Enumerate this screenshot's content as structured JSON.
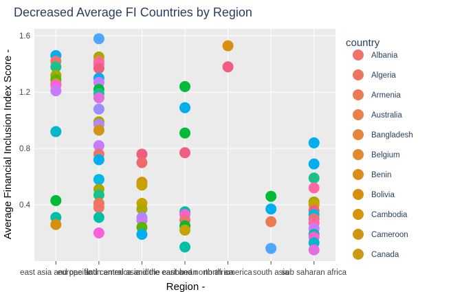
{
  "chart_data": {
    "type": "scatter",
    "title": "Decreased Average FI Countries by Region",
    "xlabel": "Region -",
    "ylabel": "Average Financial Inclusion Index Score -",
    "categories": [
      "east asia and pacific",
      "europe and central asia",
      "latin america and the caribbean",
      "middle east and north africa",
      "north america",
      "south asia",
      "sub saharan africa"
    ],
    "yticks": [
      0.4,
      0.8,
      1.2,
      1.6
    ],
    "yticklabels": [
      "0.4",
      "0.8",
      "1.2",
      "1.6"
    ],
    "ylim": [
      0.0,
      1.65
    ],
    "grid": true,
    "legend": {
      "title": "country",
      "placement": "right",
      "entries": [
        {
          "name": "Albania",
          "color": "#f0726b"
        },
        {
          "name": "Algeria",
          "color": "#ed7560"
        },
        {
          "name": "Armenia",
          "color": "#ea7a52"
        },
        {
          "name": "Australia",
          "color": "#e88048"
        },
        {
          "name": "Bangladesh",
          "color": "#e5853b"
        },
        {
          "name": "Belgium",
          "color": "#e1892e"
        },
        {
          "name": "Benin",
          "color": "#db8d1a"
        },
        {
          "name": "Bolivia",
          "color": "#d8900c"
        },
        {
          "name": "Cambodia",
          "color": "#d4940e"
        },
        {
          "name": "Cameroon",
          "color": "#d09612"
        },
        {
          "name": "Canada",
          "color": "#cc9914"
        }
      ]
    },
    "points": [
      {
        "cat": 0,
        "y": 1.46,
        "color": "#00aeef"
      },
      {
        "cat": 0,
        "y": 1.42,
        "color": "#f0726b"
      },
      {
        "cat": 0,
        "y": 1.38,
        "color": "#1bc08a"
      },
      {
        "cat": 0,
        "y": 1.32,
        "color": "#a8a800"
      },
      {
        "cat": 0,
        "y": 1.29,
        "color": "#5bb300"
      },
      {
        "cat": 0,
        "y": 1.26,
        "color": "#c7a300"
      },
      {
        "cat": 0,
        "y": 1.25,
        "color": "#fb61d7"
      },
      {
        "cat": 0,
        "y": 1.21,
        "color": "#c77cff"
      },
      {
        "cat": 0,
        "y": 0.92,
        "color": "#00b8c8"
      },
      {
        "cat": 0,
        "y": 0.43,
        "color": "#00ba38"
      },
      {
        "cat": 0,
        "y": 0.31,
        "color": "#00bfa6"
      },
      {
        "cat": 0,
        "y": 0.26,
        "color": "#d8900c"
      },
      {
        "cat": 1,
        "y": 1.58,
        "color": "#4da6ff"
      },
      {
        "cat": 1,
        "y": 1.45,
        "color": "#a8a800"
      },
      {
        "cat": 1,
        "y": 1.42,
        "color": "#f8766d"
      },
      {
        "cat": 1,
        "y": 1.4,
        "color": "#ff66a8"
      },
      {
        "cat": 1,
        "y": 1.37,
        "color": "#f05d7e"
      },
      {
        "cat": 1,
        "y": 1.3,
        "color": "#00aeef"
      },
      {
        "cat": 1,
        "y": 1.27,
        "color": "#c77cff"
      },
      {
        "cat": 1,
        "y": 1.22,
        "color": "#00ba38"
      },
      {
        "cat": 1,
        "y": 1.19,
        "color": "#1bc08a"
      },
      {
        "cat": 1,
        "y": 1.16,
        "color": "#e36ee0"
      },
      {
        "cat": 1,
        "y": 1.08,
        "color": "#9990ff"
      },
      {
        "cat": 1,
        "y": 0.99,
        "color": "#a8a800"
      },
      {
        "cat": 1,
        "y": 0.97,
        "color": "#b385ff"
      },
      {
        "cat": 1,
        "y": 0.93,
        "color": "#d09612"
      },
      {
        "cat": 1,
        "y": 0.82,
        "color": "#c77cff"
      },
      {
        "cat": 1,
        "y": 0.76,
        "color": "#f0726b"
      },
      {
        "cat": 1,
        "y": 0.72,
        "color": "#00aeef"
      },
      {
        "cat": 1,
        "y": 0.58,
        "color": "#00b8e7"
      },
      {
        "cat": 1,
        "y": 0.51,
        "color": "#a8a800"
      },
      {
        "cat": 1,
        "y": 0.47,
        "color": "#1bc08a"
      },
      {
        "cat": 1,
        "y": 0.41,
        "color": "#ea7a52"
      },
      {
        "cat": 1,
        "y": 0.38,
        "color": "#f0726b"
      },
      {
        "cat": 1,
        "y": 0.31,
        "color": "#00bfa6"
      },
      {
        "cat": 1,
        "y": 0.2,
        "color": "#fb61d7"
      },
      {
        "cat": 2,
        "y": 0.76,
        "color": "#f05d7e"
      },
      {
        "cat": 2,
        "y": 0.7,
        "color": "#ed6a6a"
      },
      {
        "cat": 2,
        "y": 0.56,
        "color": "#d8900c"
      },
      {
        "cat": 2,
        "y": 0.54,
        "color": "#c7a300"
      },
      {
        "cat": 2,
        "y": 0.41,
        "color": "#c7a300"
      },
      {
        "cat": 2,
        "y": 0.37,
        "color": "#a8a800"
      },
      {
        "cat": 2,
        "y": 0.31,
        "color": "#9990ff"
      },
      {
        "cat": 2,
        "y": 0.29,
        "color": "#c77cff"
      },
      {
        "cat": 2,
        "y": 0.24,
        "color": "#5bb300"
      },
      {
        "cat": 2,
        "y": 0.19,
        "color": "#00aeef"
      },
      {
        "cat": 3,
        "y": 1.24,
        "color": "#00ba38"
      },
      {
        "cat": 3,
        "y": 1.09,
        "color": "#00aeef"
      },
      {
        "cat": 3,
        "y": 0.91,
        "color": "#00ba38"
      },
      {
        "cat": 3,
        "y": 0.77,
        "color": "#f05d7e"
      },
      {
        "cat": 3,
        "y": 0.35,
        "color": "#00bfa6"
      },
      {
        "cat": 3,
        "y": 0.33,
        "color": "#fb61d7"
      },
      {
        "cat": 3,
        "y": 0.29,
        "color": "#f0726b"
      },
      {
        "cat": 3,
        "y": 0.25,
        "color": "#00ba38"
      },
      {
        "cat": 3,
        "y": 0.22,
        "color": "#c7a300"
      },
      {
        "cat": 3,
        "y": 0.1,
        "color": "#00bfa6"
      },
      {
        "cat": 4,
        "y": 1.53,
        "color": "#d8900c"
      },
      {
        "cat": 4,
        "y": 1.38,
        "color": "#f05d7e"
      },
      {
        "cat": 5,
        "y": 0.46,
        "color": "#00ba38"
      },
      {
        "cat": 5,
        "y": 0.37,
        "color": "#00aeef"
      },
      {
        "cat": 5,
        "y": 0.28,
        "color": "#ea7a52"
      },
      {
        "cat": 5,
        "y": 0.09,
        "color": "#4da6ff"
      },
      {
        "cat": 6,
        "y": 0.84,
        "color": "#00aeef"
      },
      {
        "cat": 6,
        "y": 0.69,
        "color": "#00aeef"
      },
      {
        "cat": 6,
        "y": 0.59,
        "color": "#1bc08a"
      },
      {
        "cat": 6,
        "y": 0.52,
        "color": "#ff66a8"
      },
      {
        "cat": 6,
        "y": 0.42,
        "color": "#a8a800"
      },
      {
        "cat": 6,
        "y": 0.4,
        "color": "#c7a300"
      },
      {
        "cat": 6,
        "y": 0.36,
        "color": "#f05d7e"
      },
      {
        "cat": 6,
        "y": 0.33,
        "color": "#00b8e7"
      },
      {
        "cat": 6,
        "y": 0.3,
        "color": "#f0726b"
      },
      {
        "cat": 6,
        "y": 0.27,
        "color": "#ff66a8"
      },
      {
        "cat": 6,
        "y": 0.23,
        "color": "#c77cff"
      },
      {
        "cat": 6,
        "y": 0.19,
        "color": "#00bfa6"
      },
      {
        "cat": 6,
        "y": 0.17,
        "color": "#fb61d7"
      },
      {
        "cat": 6,
        "y": 0.13,
        "color": "#00b8c8"
      },
      {
        "cat": 6,
        "y": 0.08,
        "color": "#e36ee0"
      }
    ]
  }
}
